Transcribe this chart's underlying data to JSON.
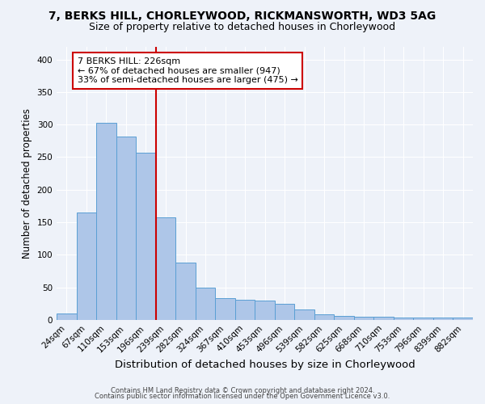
{
  "title1": "7, BERKS HILL, CHORLEYWOOD, RICKMANSWORTH, WD3 5AG",
  "title2": "Size of property relative to detached houses in Chorleywood",
  "xlabel": "Distribution of detached houses by size in Chorleywood",
  "ylabel": "Number of detached properties",
  "footnote1": "Contains HM Land Registry data © Crown copyright and database right 2024.",
  "footnote2": "Contains public sector information licensed under the Open Government Licence v3.0.",
  "categories": [
    "24sqm",
    "67sqm",
    "110sqm",
    "153sqm",
    "196sqm",
    "239sqm",
    "282sqm",
    "324sqm",
    "367sqm",
    "410sqm",
    "453sqm",
    "496sqm",
    "539sqm",
    "582sqm",
    "625sqm",
    "668sqm",
    "710sqm",
    "753sqm",
    "796sqm",
    "839sqm",
    "882sqm"
  ],
  "values": [
    10,
    165,
    303,
    282,
    257,
    158,
    88,
    49,
    33,
    31,
    29,
    25,
    16,
    8,
    6,
    5,
    5,
    4,
    3,
    3,
    3
  ],
  "bar_color": "#aec6e8",
  "bar_edge_color": "#5a9fd4",
  "vline_x": 5.0,
  "vline_color": "#cc0000",
  "annotation_title": "7 BERKS HILL: 226sqm",
  "annotation_line1": "← 67% of detached houses are smaller (947)",
  "annotation_line2": "33% of semi-detached houses are larger (475) →",
  "annotation_box_color": "#ffffff",
  "annotation_box_edge_color": "#cc0000",
  "ylim": [
    0,
    420
  ],
  "background_color": "#eef2f9",
  "grid_color": "#ffffff",
  "title1_fontsize": 10,
  "title2_fontsize": 9,
  "xlabel_fontsize": 9.5,
  "ylabel_fontsize": 8.5,
  "annotation_fontsize": 8,
  "footnote_fontsize": 6,
  "tick_fontsize": 7.5
}
